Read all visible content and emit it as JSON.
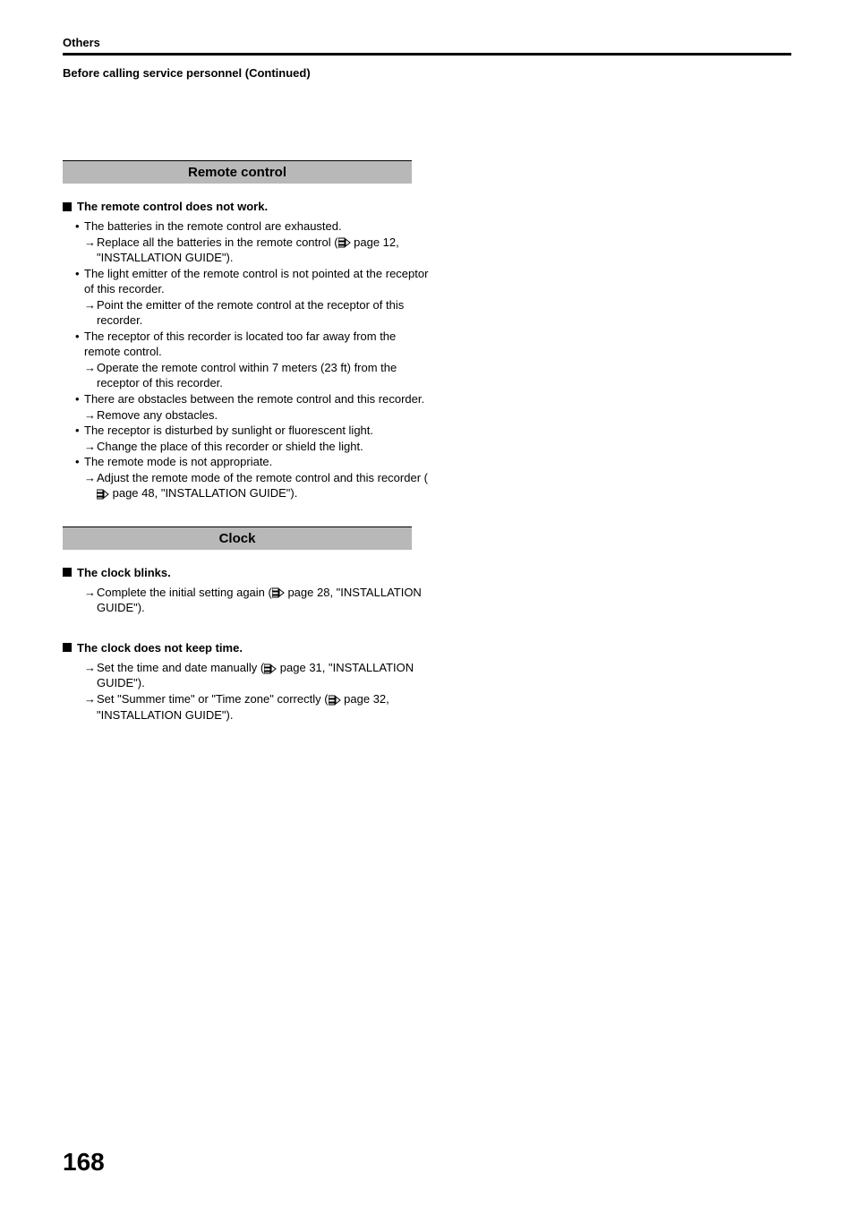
{
  "header": {
    "chapter": "Others",
    "continued": "Before calling service personnel (Continued)"
  },
  "sections": [
    {
      "heading": "Remote control",
      "groups": [
        {
          "title": "The remote control does not work.",
          "items": [
            {
              "cause": "The batteries in the remote control are exhausted.",
              "solutions": [
                {
                  "pre": "Replace all the batteries in the remote control (",
                  "pageref": " page 12, \"INSTALLATION GUIDE\")."
                }
              ]
            },
            {
              "cause": "The light emitter of the remote control is not pointed at the receptor of this recorder.",
              "solutions": [
                {
                  "text": "Point the emitter of the remote control at the receptor of this recorder."
                }
              ]
            },
            {
              "cause": "The receptor of this recorder is located too far away from the remote control.",
              "solutions": [
                {
                  "text": "Operate the remote control within 7 meters (23 ft) from the receptor of this recorder."
                }
              ]
            },
            {
              "cause": "There are obstacles between the remote control and this recorder.",
              "solutions": [
                {
                  "text": " Remove any obstacles."
                }
              ]
            },
            {
              "cause": "The receptor is disturbed by sunlight or fluorescent light.",
              "solutions": [
                {
                  "text": " Change the place of this recorder or shield the light."
                }
              ]
            },
            {
              "cause": "The remote mode is not appropriate.",
              "solutions": [
                {
                  "pre": "Adjust the remote mode of the remote control and this recorder (",
                  "pageref": " page 48, \"INSTALLATION GUIDE\")."
                }
              ]
            }
          ]
        }
      ]
    },
    {
      "heading": "Clock",
      "groups": [
        {
          "title": "The clock blinks.",
          "plain_solutions": [
            {
              "pre": "Complete the initial setting again (",
              "pageref": " page 28, \"INSTALLATION GUIDE\")."
            }
          ]
        },
        {
          "title": "The clock does not keep time.",
          "plain_solutions": [
            {
              "pre": "Set the time and date manually (",
              "pageref": " page 31, \"INSTALLATION GUIDE\")."
            },
            {
              "pre": "Set \"Summer time\" or \"Time zone\" correctly (",
              "pageref": " page 32, \"INSTALLATION GUIDE\")."
            }
          ]
        }
      ]
    }
  ],
  "page_number": "168"
}
